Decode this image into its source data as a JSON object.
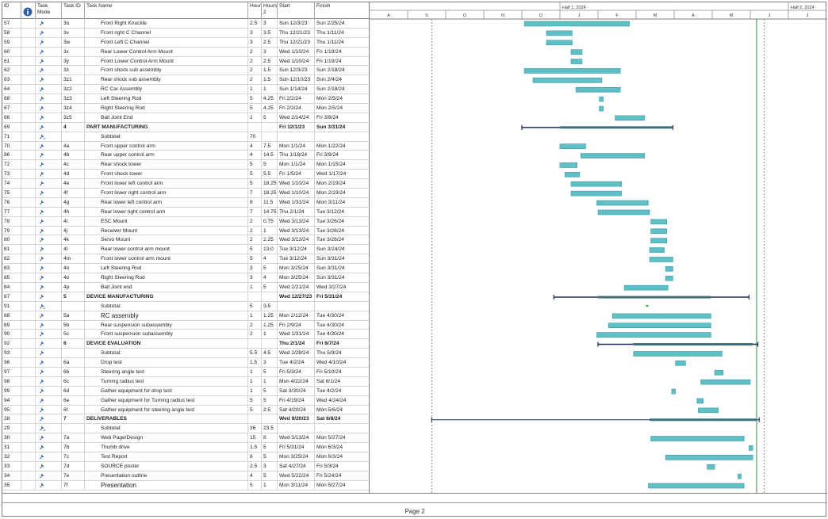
{
  "columns": {
    "id": "ID",
    "mode": "Task Mode",
    "task_id": "Task ID",
    "name": "Task Name",
    "hours1": "Hours",
    "hours2": "Hours 2",
    "start": "Start",
    "finish": "Finish"
  },
  "timescale": {
    "half1": "Half 1, 2024",
    "half2": "Half 2, 2024",
    "months": [
      "A",
      "S",
      "O",
      "N",
      "D",
      "J",
      "F",
      "M",
      "A",
      "M",
      "J",
      "J"
    ]
  },
  "colors": {
    "bar": "#5fbfc6",
    "bar_edge": "#3b9ba3",
    "summary": "#1b2a4e",
    "pin": "#2f5fa8"
  },
  "footer": {
    "page": "Page 2"
  },
  "tasks": [
    {
      "id": "57",
      "tid": "3u",
      "name": "Front Right Knuckle",
      "h1": "2.5",
      "h2": "3",
      "start": "Sun 12/3/23",
      "finish": "Sun 2/25/24",
      "s": "2023-12-03",
      "f": "2024-02-25",
      "type": "task"
    },
    {
      "id": "58",
      "tid": "3v",
      "name": "Front right C Channel",
      "h1": "3",
      "h2": "3.5",
      "start": "Thu 12/21/23",
      "finish": "Thu 1/11/24",
      "s": "2023-12-21",
      "f": "2024-01-11",
      "type": "task"
    },
    {
      "id": "59",
      "tid": "3w",
      "name": "Front Left C Channel",
      "h1": "3",
      "h2": "2.5",
      "start": "Thu 12/21/23",
      "finish": "Thu 1/11/24",
      "s": "2023-12-21",
      "f": "2024-01-11",
      "type": "task"
    },
    {
      "id": "60",
      "tid": "3x",
      "name": "Rear Lower Control Arm Mount",
      "h1": "2",
      "h2": "3",
      "start": "Wed 1/10/24",
      "finish": "Fri 1/19/24",
      "s": "2024-01-10",
      "f": "2024-01-19",
      "type": "task"
    },
    {
      "id": "61",
      "tid": "3y",
      "name": "Front Lower Control Arm Mount",
      "h1": "2",
      "h2": "2.5",
      "start": "Wed 1/10/24",
      "finish": "Fri 1/19/24",
      "s": "2024-01-10",
      "f": "2024-01-19",
      "type": "task"
    },
    {
      "id": "62",
      "tid": "3z",
      "name": "Front shock sub assembly",
      "h1": "2",
      "h2": "1.5",
      "start": "Sun 12/3/23",
      "finish": "Sun 2/18/24",
      "s": "2023-12-03",
      "f": "2024-02-18",
      "type": "task"
    },
    {
      "id": "63",
      "tid": "3z1",
      "name": "Rear shock sub assembly",
      "h1": "2",
      "h2": "1.5",
      "start": "Sun 12/10/23",
      "finish": "Sun 2/4/24",
      "s": "2023-12-10",
      "f": "2024-02-04",
      "type": "task"
    },
    {
      "id": "64",
      "tid": "3z2",
      "name": "RC Car Assembly",
      "h1": "1",
      "h2": "1",
      "start": "Sun 1/14/24",
      "finish": "Sun 2/18/24",
      "s": "2024-01-14",
      "f": "2024-02-18",
      "type": "task"
    },
    {
      "id": "68",
      "tid": "3z3",
      "name": "Left Steering Rod",
      "h1": "5",
      "h2": "4.25",
      "start": "Fri 2/2/24",
      "finish": "Mon 2/5/24",
      "s": "2024-02-02",
      "f": "2024-02-05",
      "type": "task"
    },
    {
      "id": "67",
      "tid": "3z4",
      "name": "Right Steering Rod",
      "h1": "5",
      "h2": "4.25",
      "start": "Fri 2/2/24",
      "finish": "Mon 2/5/24",
      "s": "2024-02-02",
      "f": "2024-02-05",
      "type": "task"
    },
    {
      "id": "66",
      "tid": "3z5",
      "name": "Ball Joint End",
      "h1": "1",
      "h2": "5",
      "start": "Wed 2/14/24",
      "finish": "Fri 3/8/24",
      "s": "2024-02-14",
      "f": "2024-03-08",
      "type": "task"
    },
    {
      "id": "69",
      "tid": "4",
      "name": "PART MANUFACTURING",
      "h1": "",
      "h2": "",
      "start": "Fri 12/1/23",
      "finish": "Sun 3/31/24",
      "s": "2023-12-01",
      "f": "2024-03-31",
      "type": "summary",
      "inner_s": "2024-01-01"
    },
    {
      "id": "71",
      "tid": "",
      "name": "Subtotal:",
      "h1": "70",
      "h2": "",
      "start": "",
      "finish": "",
      "type": "subtotal"
    },
    {
      "id": "70",
      "tid": "4a",
      "name": "Front upper control arm",
      "h1": "4",
      "h2": "7.5",
      "start": "Mon 1/1/24",
      "finish": "Mon 1/22/24",
      "s": "2024-01-01",
      "f": "2024-01-22",
      "type": "task"
    },
    {
      "id": "86",
      "tid": "4b",
      "name": "Rear upper control arm",
      "h1": "4",
      "h2": "14.5",
      "start": "Thu 1/18/24",
      "finish": "Fri 3/8/24",
      "s": "2024-01-18",
      "f": "2024-03-08",
      "type": "task"
    },
    {
      "id": "72",
      "tid": "4c",
      "name": "Rear shock tower",
      "h1": "5",
      "h2": "5",
      "start": "Mon 1/1/24",
      "finish": "Mon 1/15/24",
      "s": "2024-01-01",
      "f": "2024-01-15",
      "type": "task"
    },
    {
      "id": "73",
      "tid": "4d",
      "name": "Front shock tower",
      "h1": "5",
      "h2": "5.5",
      "start": "Fri 1/5/24",
      "finish": "Wed 1/17/24",
      "s": "2024-01-05",
      "f": "2024-01-17",
      "type": "task"
    },
    {
      "id": "74",
      "tid": "4e",
      "name": "Front lower left control arm",
      "h1": "5",
      "h2": "18.25",
      "start": "Wed 1/10/24",
      "finish": "Mon 2/19/24",
      "s": "2024-01-10",
      "f": "2024-02-19",
      "type": "task"
    },
    {
      "id": "75",
      "tid": "4f",
      "name": "Front lower right control arm",
      "h1": "7",
      "h2": "18.25",
      "start": "Wed 1/10/24",
      "finish": "Mon 2/19/24",
      "s": "2024-01-10",
      "f": "2024-02-19",
      "type": "task"
    },
    {
      "id": "76",
      "tid": "4g",
      "name": "Rear lower left control arm",
      "h1": "8",
      "h2": "11.5",
      "start": "Wed 1/31/24",
      "finish": "Mon 3/11/24",
      "s": "2024-01-31",
      "f": "2024-03-11",
      "type": "task"
    },
    {
      "id": "77",
      "tid": "4h",
      "name": "Rear lower right control arm",
      "h1": "7",
      "h2": "14.75",
      "start": "Thu 2/1/24",
      "finish": "Tue 3/12/24",
      "s": "2024-02-01",
      "f": "2024-03-12",
      "type": "task"
    },
    {
      "id": "78",
      "tid": "4i",
      "name": "ESC Mount",
      "h1": "2",
      "h2": "0.75",
      "start": "Wed 3/13/24",
      "finish": "Tue 3/26/24",
      "s": "2024-03-13",
      "f": "2024-03-26",
      "type": "task"
    },
    {
      "id": "79",
      "tid": "4j",
      "name": "Receiver Mount",
      "h1": "2",
      "h2": "1",
      "start": "Wed 3/13/24",
      "finish": "Tue 3/26/24",
      "s": "2024-03-13",
      "f": "2024-03-26",
      "type": "task"
    },
    {
      "id": "80",
      "tid": "4k",
      "name": "Servo Mount",
      "h1": "2",
      "h2": "2.25",
      "start": "Wed 3/13/24",
      "finish": "Tue 3/26/24",
      "s": "2024-03-13",
      "f": "2024-03-26",
      "type": "task"
    },
    {
      "id": "81",
      "tid": "4l",
      "name": "Rear lower control arm mount",
      "h1": "5",
      "h2": "13.0",
      "start": "Tue 3/12/24",
      "finish": "Sun 3/24/24",
      "s": "2024-03-12",
      "f": "2024-03-24",
      "type": "task"
    },
    {
      "id": "82",
      "tid": "4m",
      "name": "Front lower control arm mount",
      "h1": "5",
      "h2": "4",
      "start": "Tue 3/12/24",
      "finish": "Sun 3/31/24",
      "s": "2024-03-12",
      "f": "2024-03-31",
      "type": "task"
    },
    {
      "id": "83",
      "tid": "4n",
      "name": "Left Steering Rod",
      "h1": "3",
      "h2": "5",
      "start": "Mon 3/25/24",
      "finish": "Sun 3/31/24",
      "s": "2024-03-25",
      "f": "2024-03-31",
      "type": "task"
    },
    {
      "id": "85",
      "tid": "4o",
      "name": "Right Steering Rod",
      "h1": "3",
      "h2": "4",
      "start": "Mon 3/25/24",
      "finish": "Sun 3/31/24",
      "s": "2024-03-25",
      "f": "2024-03-31",
      "type": "task"
    },
    {
      "id": "84",
      "tid": "4p",
      "name": "Ball Joint end",
      "h1": "1",
      "h2": "5",
      "start": "Wed 2/21/24",
      "finish": "Wed 3/27/24",
      "s": "2024-02-21",
      "f": "2024-03-27",
      "type": "task"
    },
    {
      "id": "87",
      "tid": "5",
      "name": "DEVICE MANUFACTURING",
      "h1": "",
      "h2": "",
      "start": "Wed 12/27/23",
      "finish": "Fri 5/31/24",
      "s": "2023-12-27",
      "f": "2024-05-31",
      "type": "summary",
      "inner_s": "2024-02-01",
      "inner_f": "2024-04-30"
    },
    {
      "id": "91",
      "tid": "",
      "name": "Subtotal:",
      "h1": "5",
      "h2": "3.5",
      "start": "",
      "finish": "",
      "type": "subtotal",
      "milestone": "2024-03-10"
    },
    {
      "id": "88",
      "tid": "5a",
      "name": "RC assembly",
      "h1": "1",
      "h2": "1.25",
      "start": "Mon 2/12/24",
      "finish": "Tue 4/30/24",
      "s": "2024-02-12",
      "f": "2024-04-30",
      "type": "task",
      "big": true
    },
    {
      "id": "89",
      "tid": "5b",
      "name": "Rear suspension subassembly",
      "h1": "2",
      "h2": "1.25",
      "start": "Fri 2/9/24",
      "finish": "Tue 4/30/24",
      "s": "2024-02-09",
      "f": "2024-04-30",
      "type": "task"
    },
    {
      "id": "90",
      "tid": "5c",
      "name": "Front suspension subassembly",
      "h1": "2",
      "h2": "1",
      "start": "Wed 1/31/24",
      "finish": "Tue 4/30/24",
      "s": "2024-01-31",
      "f": "2024-04-30",
      "type": "task"
    },
    {
      "id": "92",
      "tid": "6",
      "name": "DEVICE EVALUATION",
      "h1": "",
      "h2": "",
      "start": "Thu 2/1/24",
      "finish": "Fri 6/7/24",
      "s": "2024-02-01",
      "f": "2024-06-07",
      "type": "summary",
      "inner_s": "2024-02-28",
      "inner_f": "2024-06-03"
    },
    {
      "id": "93",
      "tid": "",
      "name": "Subtotal:",
      "h1": "5.5",
      "h2": "4.5",
      "start": "Wed 2/28/24",
      "finish": "Thu 5/9/24",
      "s": "2024-02-28",
      "f": "2024-05-09",
      "type": "task"
    },
    {
      "id": "96",
      "tid": "6a",
      "name": "Drop test",
      "h1": "1.5",
      "h2": "3",
      "start": "Tue 4/2/24",
      "finish": "Wed 4/10/24",
      "s": "2024-04-02",
      "f": "2024-04-10",
      "type": "task"
    },
    {
      "id": "97",
      "tid": "6b",
      "name": "Steering angle test",
      "h1": "1",
      "h2": "5",
      "start": "Fri 5/3/24",
      "finish": "Fri 5/10/24",
      "s": "2024-05-03",
      "f": "2024-05-10",
      "type": "task"
    },
    {
      "id": "98",
      "tid": "6c",
      "name": "Turning radius test",
      "h1": "1",
      "h2": "1",
      "start": "Mon 4/22/24",
      "finish": "Sat 6/1/24",
      "s": "2024-04-22",
      "f": "2024-06-01",
      "type": "task"
    },
    {
      "id": "99",
      "tid": "6d",
      "name": "Gather equipment for drop test",
      "h1": "1",
      "h2": "5",
      "start": "Sat 3/30/24",
      "finish": "Tue 4/2/24",
      "s": "2024-03-30",
      "f": "2024-04-02",
      "type": "task"
    },
    {
      "id": "94",
      "tid": "6e",
      "name": "Gather equipment for Turning radius test",
      "h1": "5",
      "h2": "5",
      "start": "Fri 4/19/24",
      "finish": "Wed 4/24/24",
      "s": "2024-04-19",
      "f": "2024-04-24",
      "type": "task"
    },
    {
      "id": "95",
      "tid": "6f",
      "name": "Gather equipment for steering angle test",
      "h1": "5",
      "h2": "2.5",
      "start": "Sat 4/20/24",
      "finish": "Mon 5/6/24",
      "s": "2024-04-20",
      "f": "2024-05-06",
      "type": "task"
    },
    {
      "id": "28",
      "tid": "7",
      "name": "DELIVERABLES",
      "h1": "",
      "h2": "",
      "start": "Wed 9/20/23",
      "finish": "Sat 6/8/24",
      "s": "2023-09-20",
      "f": "2024-06-08",
      "type": "summary",
      "thin": true,
      "inner_s": "2024-03-12",
      "inner_f": "2024-06-06"
    },
    {
      "id": "29",
      "tid": "",
      "name": "Subtotal:",
      "h1": "36",
      "h2": "23.5",
      "start": "",
      "finish": "",
      "type": "subtotal"
    },
    {
      "id": "30",
      "tid": "7a",
      "name": "Web Page/Design",
      "h1": "15",
      "h2": "8",
      "start": "Wed 3/13/24",
      "finish": "Mon 5/27/24",
      "s": "2024-03-13",
      "f": "2024-05-27",
      "type": "task"
    },
    {
      "id": "31",
      "tid": "7b",
      "name": "Thumb drive",
      "h1": "1.5",
      "h2": "5",
      "start": "Fri 5/31/24",
      "finish": "Mon 6/3/24",
      "s": "2024-05-31",
      "f": "2024-06-03",
      "type": "task"
    },
    {
      "id": "32",
      "tid": "7c",
      "name": "Test Report",
      "h1": "8",
      "h2": "5",
      "start": "Mon 3/25/24",
      "finish": "Mon 6/3/24",
      "s": "2024-03-25",
      "f": "2024-06-03",
      "type": "task"
    },
    {
      "id": "33",
      "tid": "7d",
      "name": "SOURCE poster",
      "h1": "2.5",
      "h2": "3",
      "start": "Sat 4/27/24",
      "finish": "Fri 5/3/24",
      "s": "2024-04-27",
      "f": "2024-05-03",
      "type": "task"
    },
    {
      "id": "34",
      "tid": "7e",
      "name": "Presentation outline",
      "h1": "4",
      "h2": "5",
      "start": "Wed 5/22/24",
      "finish": "Fri 5/24/24",
      "s": "2024-05-22",
      "f": "2024-05-24",
      "type": "task"
    },
    {
      "id": "35",
      "tid": "7f",
      "name": "Presentation",
      "h1": "5",
      "h2": "1",
      "start": "Mon 3/11/24",
      "finish": "Mon 5/27/24",
      "s": "2024-03-11",
      "f": "2024-05-27",
      "type": "task",
      "big": true
    }
  ]
}
